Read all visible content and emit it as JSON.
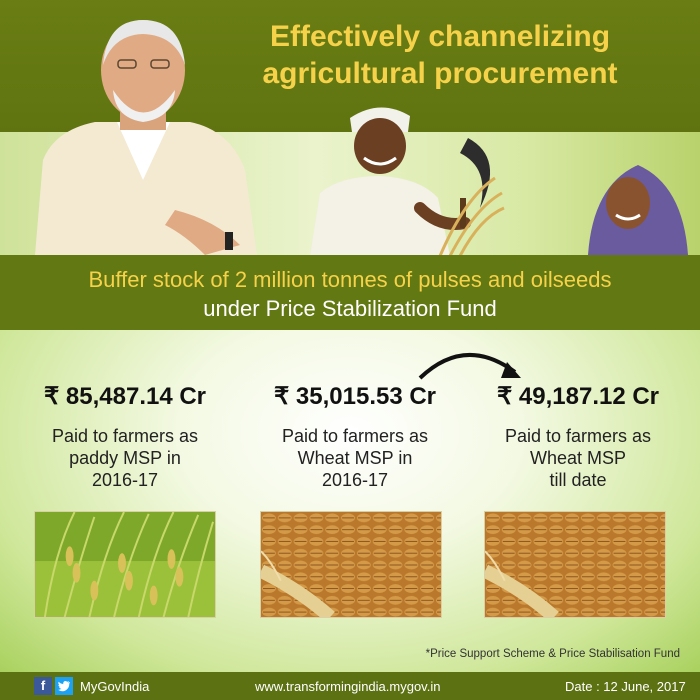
{
  "header": {
    "title_line1": "Effectively channelizing",
    "title_line2": "agricultural procurement"
  },
  "subheading": {
    "line1": "Buffer stock of 2 million tonnes of pulses and oilseeds",
    "line2": "under Price Stabilization Fund"
  },
  "stats": [
    {
      "amount": "₹ 85,487.14 Cr",
      "desc_line1": "Paid to farmers as",
      "desc_line2": "paddy MSP in",
      "desc_line3": "2016-17",
      "image": "paddy-photo"
    },
    {
      "amount": "₹ 35,015.53 Cr",
      "desc_line1": "Paid to farmers as",
      "desc_line2": "Wheat MSP in",
      "desc_line3": "2016-17",
      "image": "wheat-photo"
    },
    {
      "amount": "₹ 49,187.12 Cr",
      "desc_line1": "Paid to farmers as",
      "desc_line2": "Wheat MSP",
      "desc_line3": "till date",
      "image": "wheat-photo"
    }
  ],
  "footnote": "*Price Support Scheme & Price Stabilisation Fund",
  "footer": {
    "facebook_icon": "f",
    "handle": "MyGovIndia",
    "website": "www.transformingindia.mygov.in",
    "date": "Date : 12 June, 2017"
  },
  "colors": {
    "olive_band": "#627812",
    "headline_yellow": "#f6d24a",
    "light_green": "#cfe79a"
  }
}
